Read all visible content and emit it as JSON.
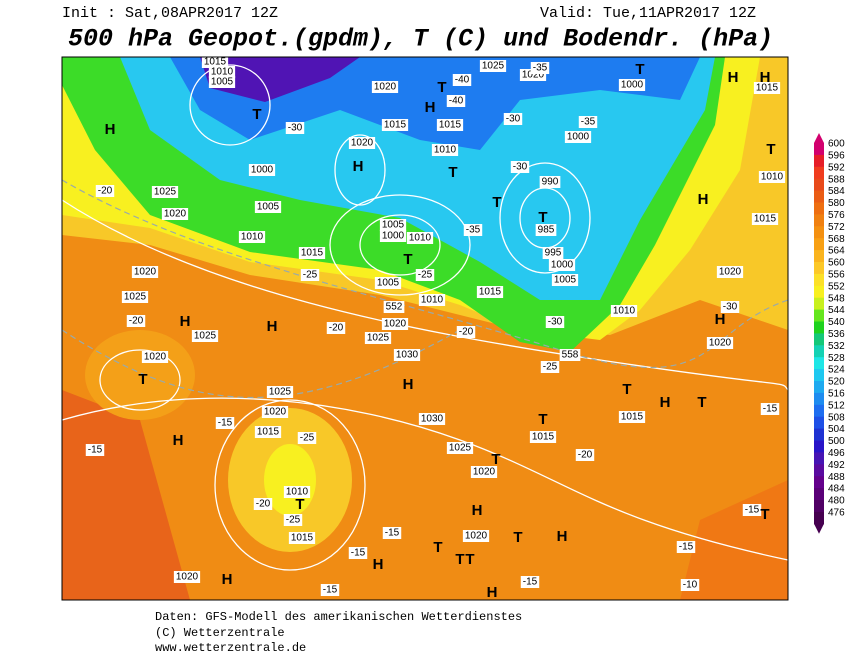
{
  "header": {
    "init": "Init : Sat,08APR2017 12Z",
    "valid": "Valid: Tue,11APR2017 12Z",
    "title": "500 hPa Geopot.(gpdm), T (C) und Bodendr. (hPa)"
  },
  "map": {
    "pressure_labels": [
      "1015",
      "1010",
      "1005",
      "1020",
      "1025",
      "1020",
      "1000",
      "1015",
      "1015",
      "1020",
      "1010",
      "1000",
      "1000",
      "1025",
      "1005",
      "1020",
      "1010",
      "1005",
      "1000",
      "1010",
      "1015",
      "990",
      "985",
      "995",
      "1000",
      "1005",
      "1020",
      "1025",
      "1005",
      "1010",
      "1015",
      "1010",
      "1020",
      "1015",
      "1010",
      "1015",
      "1025",
      "1020",
      "1025",
      "1030",
      "1020",
      "1020",
      "1025",
      "1020",
      "1030",
      "1015",
      "1015",
      "1025",
      "1020",
      "1010",
      "1015",
      "1020",
      "1020",
      "1015"
    ],
    "temperature_labels": [
      "-40",
      "-40",
      "-35",
      "-35",
      "-30",
      "-30",
      "-30",
      "-20",
      "-35",
      "-25",
      "-25",
      "-20",
      "-20",
      "-20",
      "-30",
      "-30",
      "-25",
      "-15",
      "-15",
      "-25",
      "-20",
      "-25",
      "-15",
      "-15",
      "-20",
      "-15",
      "-15",
      "-15",
      "-15",
      "-10",
      "-15"
    ],
    "contour_labels": [
      "552",
      "558"
    ],
    "centers": [
      "H",
      "H",
      "H",
      "H",
      "H",
      "H",
      "H",
      "H",
      "H",
      "H",
      "H",
      "H",
      "H",
      "H",
      "H",
      "H",
      "H",
      "T",
      "T",
      "T",
      "T",
      "T",
      "T",
      "T",
      "T",
      "T",
      "T",
      "T",
      "T",
      "T",
      "T",
      "T",
      "T",
      "T",
      "T",
      "T"
    ]
  },
  "colorbar": {
    "ticks": [
      600,
      596,
      592,
      588,
      584,
      580,
      576,
      572,
      568,
      564,
      560,
      556,
      552,
      548,
      544,
      540,
      536,
      532,
      528,
      524,
      520,
      516,
      512,
      508,
      504,
      500,
      496,
      492,
      488,
      484,
      480,
      476
    ],
    "colors": [
      "#d2006e",
      "#e61e28",
      "#f03c1e",
      "#e84a1a",
      "#ea5c14",
      "#ee6e10",
      "#f08010",
      "#f49010",
      "#f8a014",
      "#fab41e",
      "#fcc828",
      "#fce028",
      "#f8f020",
      "#c8f01e",
      "#64e61e",
      "#1ed21e",
      "#14c878",
      "#14d2b4",
      "#1ee6e6",
      "#1ec8f0",
      "#1eaaf0",
      "#1e8cf0",
      "#1e6ef0",
      "#1e50e6",
      "#1e32d2",
      "#2814c8",
      "#4614b4",
      "#5a0aa0",
      "#64008c",
      "#5a0078",
      "#500064",
      "#460050"
    ]
  },
  "footer": {
    "source": "Daten: GFS-Modell des amerikanischen Wetterdienstes",
    "copyright": "(C) Wetterzentrale",
    "url": "www.wetterzentrale.de"
  }
}
